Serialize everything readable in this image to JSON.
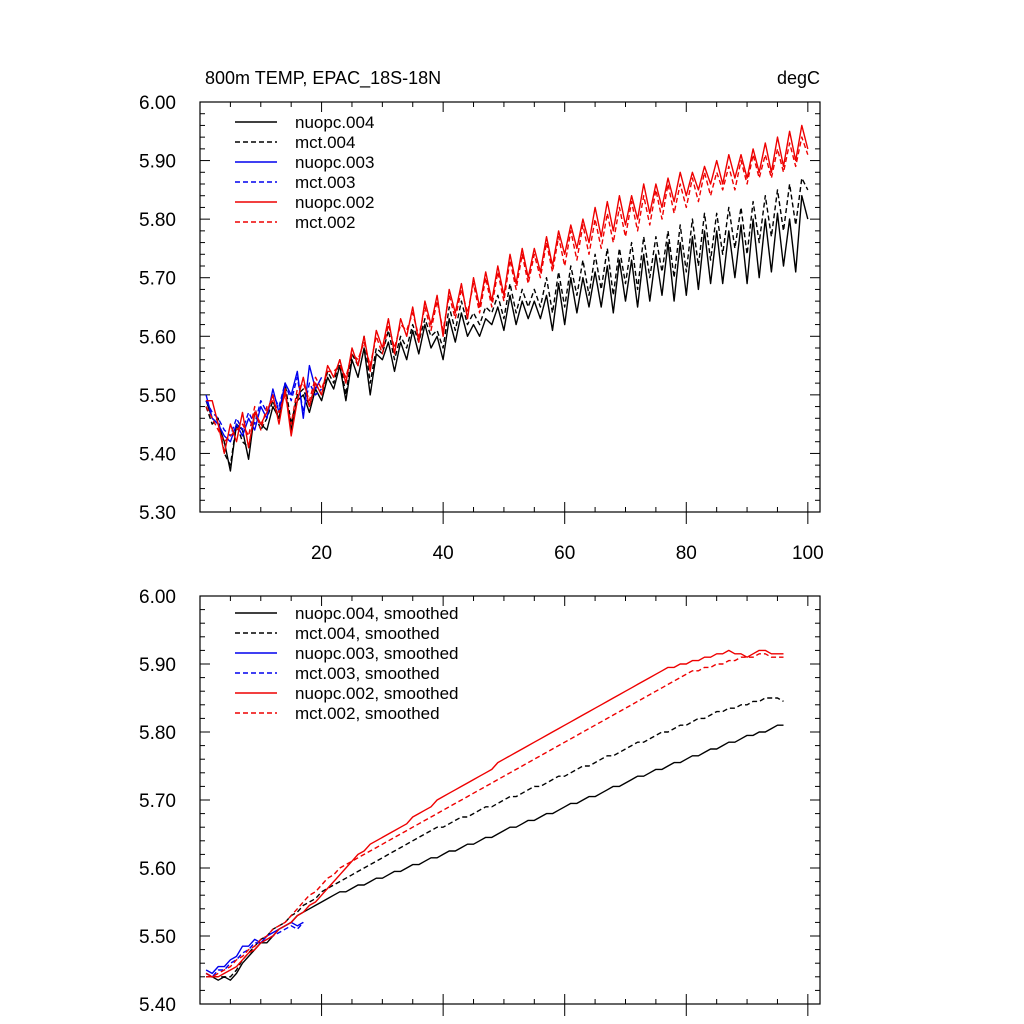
{
  "chart_data": [
    {
      "type": "line",
      "title": "800m TEMP, EPAC_18S-18N",
      "units": "degC",
      "xlabel": "",
      "ylabel": "",
      "xlim": [
        0,
        102
      ],
      "ylim": [
        5.3,
        6.0
      ],
      "x_tick_labels": [
        "20",
        "40",
        "60",
        "80",
        "100"
      ],
      "x_ticks": [
        20,
        40,
        60,
        80,
        100
      ],
      "y_tick_labels": [
        "5.30",
        "5.40",
        "5.50",
        "5.60",
        "5.70",
        "5.80",
        "5.90",
        "6.00"
      ],
      "y_ticks": [
        5.3,
        5.4,
        5.5,
        5.6,
        5.7,
        5.8,
        5.9,
        6.0
      ],
      "legend_position": "top-left",
      "series": [
        {
          "name": "nuopc.004",
          "color": "#000000",
          "dash": "solid",
          "x_start": 1,
          "values": [
            5.49,
            5.46,
            5.45,
            5.42,
            5.37,
            5.45,
            5.44,
            5.39,
            5.47,
            5.45,
            5.44,
            5.48,
            5.46,
            5.51,
            5.44,
            5.49,
            5.5,
            5.47,
            5.51,
            5.49,
            5.53,
            5.51,
            5.55,
            5.49,
            5.56,
            5.53,
            5.58,
            5.5,
            5.57,
            5.56,
            5.59,
            5.54,
            5.59,
            5.56,
            5.61,
            5.57,
            5.62,
            5.58,
            5.6,
            5.56,
            5.63,
            5.59,
            5.64,
            5.6,
            5.62,
            5.6,
            5.63,
            5.62,
            5.65,
            5.61,
            5.67,
            5.62,
            5.66,
            5.63,
            5.66,
            5.63,
            5.67,
            5.61,
            5.69,
            5.62,
            5.7,
            5.64,
            5.7,
            5.65,
            5.71,
            5.65,
            5.72,
            5.64,
            5.73,
            5.66,
            5.73,
            5.65,
            5.74,
            5.66,
            5.74,
            5.67,
            5.76,
            5.66,
            5.76,
            5.67,
            5.77,
            5.68,
            5.78,
            5.69,
            5.78,
            5.69,
            5.78,
            5.7,
            5.79,
            5.69,
            5.8,
            5.7,
            5.8,
            5.71,
            5.81,
            5.72,
            5.8,
            5.71,
            5.84,
            5.8
          ]
        },
        {
          "name": "mct.004",
          "color": "#000000",
          "dash": "dashed",
          "x_start": 1,
          "values": [
            5.48,
            5.45,
            5.46,
            5.4,
            5.38,
            5.45,
            5.42,
            5.41,
            5.47,
            5.44,
            5.46,
            5.49,
            5.46,
            5.52,
            5.45,
            5.5,
            5.51,
            5.48,
            5.52,
            5.5,
            5.54,
            5.52,
            5.56,
            5.5,
            5.57,
            5.55,
            5.6,
            5.52,
            5.58,
            5.57,
            5.61,
            5.56,
            5.6,
            5.58,
            5.62,
            5.59,
            5.63,
            5.6,
            5.61,
            5.58,
            5.65,
            5.61,
            5.66,
            5.62,
            5.64,
            5.62,
            5.65,
            5.64,
            5.67,
            5.63,
            5.69,
            5.64,
            5.68,
            5.65,
            5.68,
            5.65,
            5.7,
            5.64,
            5.71,
            5.65,
            5.72,
            5.67,
            5.73,
            5.67,
            5.74,
            5.68,
            5.75,
            5.67,
            5.75,
            5.69,
            5.76,
            5.68,
            5.77,
            5.7,
            5.77,
            5.71,
            5.78,
            5.7,
            5.79,
            5.71,
            5.8,
            5.72,
            5.81,
            5.73,
            5.81,
            5.74,
            5.82,
            5.75,
            5.82,
            5.74,
            5.83,
            5.76,
            5.84,
            5.77,
            5.85,
            5.78,
            5.86,
            5.79,
            5.87,
            5.85
          ]
        },
        {
          "name": "nuopc.003",
          "color": "#0000ee",
          "dash": "solid",
          "x_start": 1,
          "values": [
            5.5,
            5.46,
            5.45,
            5.43,
            5.42,
            5.45,
            5.43,
            5.46,
            5.44,
            5.48,
            5.46,
            5.51,
            5.47,
            5.52,
            5.5,
            5.54,
            5.46,
            5.55,
            5.51,
            5.53
          ]
        },
        {
          "name": "mct.003",
          "color": "#0000ee",
          "dash": "dashed",
          "x_start": 1,
          "values": [
            5.49,
            5.47,
            5.46,
            5.44,
            5.43,
            5.46,
            5.44,
            5.47,
            5.45,
            5.49,
            5.47,
            5.5,
            5.48,
            5.52,
            5.49,
            5.53,
            5.47,
            5.52,
            5.5,
            5.51
          ]
        },
        {
          "name": "nuopc.002",
          "color": "#ee0000",
          "dash": "solid",
          "x_start": 1,
          "values": [
            5.49,
            5.49,
            5.45,
            5.4,
            5.45,
            5.42,
            5.47,
            5.41,
            5.47,
            5.45,
            5.47,
            5.5,
            5.45,
            5.51,
            5.43,
            5.49,
            5.53,
            5.48,
            5.52,
            5.5,
            5.55,
            5.53,
            5.56,
            5.52,
            5.58,
            5.55,
            5.6,
            5.54,
            5.61,
            5.58,
            5.63,
            5.57,
            5.63,
            5.6,
            5.65,
            5.59,
            5.66,
            5.62,
            5.67,
            5.6,
            5.68,
            5.64,
            5.69,
            5.63,
            5.7,
            5.65,
            5.71,
            5.66,
            5.72,
            5.67,
            5.74,
            5.69,
            5.75,
            5.7,
            5.75,
            5.71,
            5.77,
            5.72,
            5.78,
            5.74,
            5.79,
            5.75,
            5.8,
            5.76,
            5.82,
            5.77,
            5.83,
            5.78,
            5.84,
            5.79,
            5.84,
            5.8,
            5.86,
            5.81,
            5.86,
            5.82,
            5.87,
            5.83,
            5.88,
            5.84,
            5.88,
            5.85,
            5.89,
            5.86,
            5.9,
            5.86,
            5.91,
            5.87,
            5.91,
            5.87,
            5.92,
            5.88,
            5.93,
            5.88,
            5.94,
            5.89,
            5.95,
            5.9,
            5.96,
            5.92
          ]
        },
        {
          "name": "mct.002",
          "color": "#ee0000",
          "dash": "dashed",
          "x_start": 1,
          "values": [
            5.48,
            5.46,
            5.44,
            5.42,
            5.43,
            5.44,
            5.45,
            5.43,
            5.48,
            5.44,
            5.48,
            5.49,
            5.47,
            5.5,
            5.45,
            5.51,
            5.52,
            5.49,
            5.53,
            5.51,
            5.54,
            5.54,
            5.55,
            5.53,
            5.57,
            5.56,
            5.59,
            5.55,
            5.6,
            5.57,
            5.62,
            5.58,
            5.62,
            5.61,
            5.64,
            5.6,
            5.65,
            5.61,
            5.66,
            5.61,
            5.67,
            5.63,
            5.68,
            5.64,
            5.69,
            5.64,
            5.7,
            5.65,
            5.71,
            5.66,
            5.73,
            5.68,
            5.74,
            5.69,
            5.74,
            5.7,
            5.76,
            5.71,
            5.77,
            5.72,
            5.78,
            5.73,
            5.79,
            5.74,
            5.8,
            5.75,
            5.81,
            5.76,
            5.82,
            5.77,
            5.83,
            5.78,
            5.84,
            5.79,
            5.85,
            5.8,
            5.86,
            5.81,
            5.86,
            5.82,
            5.87,
            5.83,
            5.88,
            5.84,
            5.88,
            5.85,
            5.89,
            5.85,
            5.9,
            5.86,
            5.91,
            5.87,
            5.91,
            5.87,
            5.92,
            5.88,
            5.93,
            5.89,
            5.94,
            5.91
          ]
        }
      ]
    },
    {
      "type": "line",
      "title": "",
      "xlabel": "",
      "ylabel": "",
      "xlim": [
        0,
        102
      ],
      "ylim": [
        5.4,
        6.0
      ],
      "x_ticks": [
        20,
        40,
        60,
        80,
        100
      ],
      "y_tick_labels": [
        "5.40",
        "5.50",
        "5.60",
        "5.70",
        "5.80",
        "5.90",
        "6.00"
      ],
      "y_ticks": [
        5.4,
        5.5,
        5.6,
        5.7,
        5.8,
        5.9,
        6.0
      ],
      "legend_position": "top-left",
      "series": [
        {
          "name": "nuopc.004, smoothed",
          "color": "#000000",
          "dash": "solid",
          "x_start": 1,
          "values": [
            5.44,
            5.44,
            5.435,
            5.44,
            5.435,
            5.445,
            5.46,
            5.47,
            5.48,
            5.49,
            5.49,
            5.5,
            5.51,
            5.515,
            5.52,
            5.53,
            5.535,
            5.54,
            5.545,
            5.55,
            5.555,
            5.56,
            5.565,
            5.565,
            5.57,
            5.575,
            5.575,
            5.58,
            5.585,
            5.585,
            5.59,
            5.595,
            5.595,
            5.6,
            5.605,
            5.605,
            5.61,
            5.615,
            5.615,
            5.62,
            5.625,
            5.625,
            5.63,
            5.635,
            5.635,
            5.64,
            5.645,
            5.645,
            5.65,
            5.655,
            5.66,
            5.66,
            5.665,
            5.67,
            5.67,
            5.675,
            5.68,
            5.68,
            5.685,
            5.69,
            5.695,
            5.695,
            5.7,
            5.705,
            5.705,
            5.71,
            5.715,
            5.72,
            5.72,
            5.725,
            5.73,
            5.735,
            5.735,
            5.74,
            5.745,
            5.745,
            5.75,
            5.755,
            5.755,
            5.76,
            5.765,
            5.765,
            5.77,
            5.775,
            5.775,
            5.78,
            5.785,
            5.785,
            5.79,
            5.795,
            5.795,
            5.8,
            5.8,
            5.805,
            5.81,
            5.81
          ]
        },
        {
          "name": "mct.004, smoothed",
          "color": "#000000",
          "dash": "dashed",
          "x_start": 1,
          "values": [
            5.445,
            5.44,
            5.44,
            5.44,
            5.44,
            5.45,
            5.465,
            5.475,
            5.485,
            5.495,
            5.5,
            5.51,
            5.515,
            5.52,
            5.53,
            5.535,
            5.545,
            5.55,
            5.555,
            5.565,
            5.57,
            5.575,
            5.58,
            5.585,
            5.59,
            5.595,
            5.6,
            5.605,
            5.61,
            5.615,
            5.62,
            5.625,
            5.63,
            5.635,
            5.64,
            5.645,
            5.65,
            5.655,
            5.66,
            5.66,
            5.665,
            5.67,
            5.675,
            5.675,
            5.68,
            5.685,
            5.69,
            5.69,
            5.695,
            5.7,
            5.705,
            5.705,
            5.71,
            5.715,
            5.72,
            5.72,
            5.725,
            5.73,
            5.735,
            5.735,
            5.74,
            5.745,
            5.75,
            5.75,
            5.755,
            5.76,
            5.765,
            5.765,
            5.77,
            5.775,
            5.78,
            5.785,
            5.785,
            5.79,
            5.795,
            5.8,
            5.8,
            5.805,
            5.81,
            5.81,
            5.815,
            5.82,
            5.82,
            5.825,
            5.83,
            5.83,
            5.835,
            5.835,
            5.84,
            5.84,
            5.845,
            5.845,
            5.85,
            5.85,
            5.85,
            5.845
          ]
        },
        {
          "name": "nuopc.003, smoothed",
          "color": "#0000ee",
          "dash": "solid",
          "x_start": 1,
          "values": [
            5.45,
            5.445,
            5.455,
            5.455,
            5.465,
            5.47,
            5.485,
            5.485,
            5.495,
            5.49,
            5.5,
            5.505,
            5.51,
            5.515,
            5.52,
            5.515,
            5.52
          ]
        },
        {
          "name": "mct.003, smoothed",
          "color": "#0000ee",
          "dash": "dashed",
          "x_start": 1,
          "values": [
            5.445,
            5.44,
            5.45,
            5.45,
            5.46,
            5.465,
            5.475,
            5.48,
            5.49,
            5.49,
            5.495,
            5.5,
            5.505,
            5.51,
            5.515,
            5.51,
            5.52
          ]
        },
        {
          "name": "nuopc.002, smoothed",
          "color": "#ee0000",
          "dash": "solid",
          "x_start": 1,
          "values": [
            5.445,
            5.44,
            5.44,
            5.445,
            5.45,
            5.455,
            5.465,
            5.475,
            5.48,
            5.49,
            5.495,
            5.5,
            5.51,
            5.515,
            5.52,
            5.53,
            5.535,
            5.545,
            5.55,
            5.56,
            5.57,
            5.58,
            5.59,
            5.6,
            5.61,
            5.62,
            5.625,
            5.635,
            5.64,
            5.645,
            5.65,
            5.655,
            5.66,
            5.665,
            5.675,
            5.68,
            5.685,
            5.69,
            5.7,
            5.705,
            5.71,
            5.715,
            5.72,
            5.725,
            5.73,
            5.735,
            5.74,
            5.745,
            5.755,
            5.76,
            5.765,
            5.77,
            5.775,
            5.78,
            5.785,
            5.79,
            5.795,
            5.8,
            5.805,
            5.81,
            5.815,
            5.82,
            5.825,
            5.83,
            5.835,
            5.84,
            5.845,
            5.85,
            5.855,
            5.86,
            5.865,
            5.87,
            5.875,
            5.88,
            5.885,
            5.89,
            5.895,
            5.895,
            5.9,
            5.9,
            5.905,
            5.905,
            5.91,
            5.91,
            5.915,
            5.915,
            5.92,
            5.915,
            5.915,
            5.91,
            5.915,
            5.92,
            5.92,
            5.915,
            5.915,
            5.915
          ]
        },
        {
          "name": "mct.002, smoothed",
          "color": "#ee0000",
          "dash": "dashed",
          "x_start": 1,
          "values": [
            5.44,
            5.44,
            5.445,
            5.45,
            5.455,
            5.465,
            5.47,
            5.48,
            5.485,
            5.495,
            5.5,
            5.51,
            5.515,
            5.52,
            5.53,
            5.54,
            5.55,
            5.56,
            5.565,
            5.575,
            5.585,
            5.59,
            5.6,
            5.605,
            5.61,
            5.615,
            5.62,
            5.625,
            5.63,
            5.635,
            5.64,
            5.645,
            5.65,
            5.655,
            5.66,
            5.665,
            5.67,
            5.675,
            5.68,
            5.685,
            5.69,
            5.695,
            5.7,
            5.705,
            5.71,
            5.715,
            5.72,
            5.725,
            5.73,
            5.735,
            5.74,
            5.745,
            5.75,
            5.755,
            5.76,
            5.765,
            5.77,
            5.775,
            5.78,
            5.785,
            5.79,
            5.795,
            5.8,
            5.805,
            5.81,
            5.815,
            5.82,
            5.825,
            5.83,
            5.835,
            5.84,
            5.845,
            5.85,
            5.855,
            5.86,
            5.865,
            5.87,
            5.875,
            5.88,
            5.885,
            5.89,
            5.89,
            5.895,
            5.895,
            5.9,
            5.9,
            5.905,
            5.905,
            5.91,
            5.91,
            5.91,
            5.915,
            5.915,
            5.91,
            5.91,
            5.91
          ]
        }
      ]
    }
  ]
}
